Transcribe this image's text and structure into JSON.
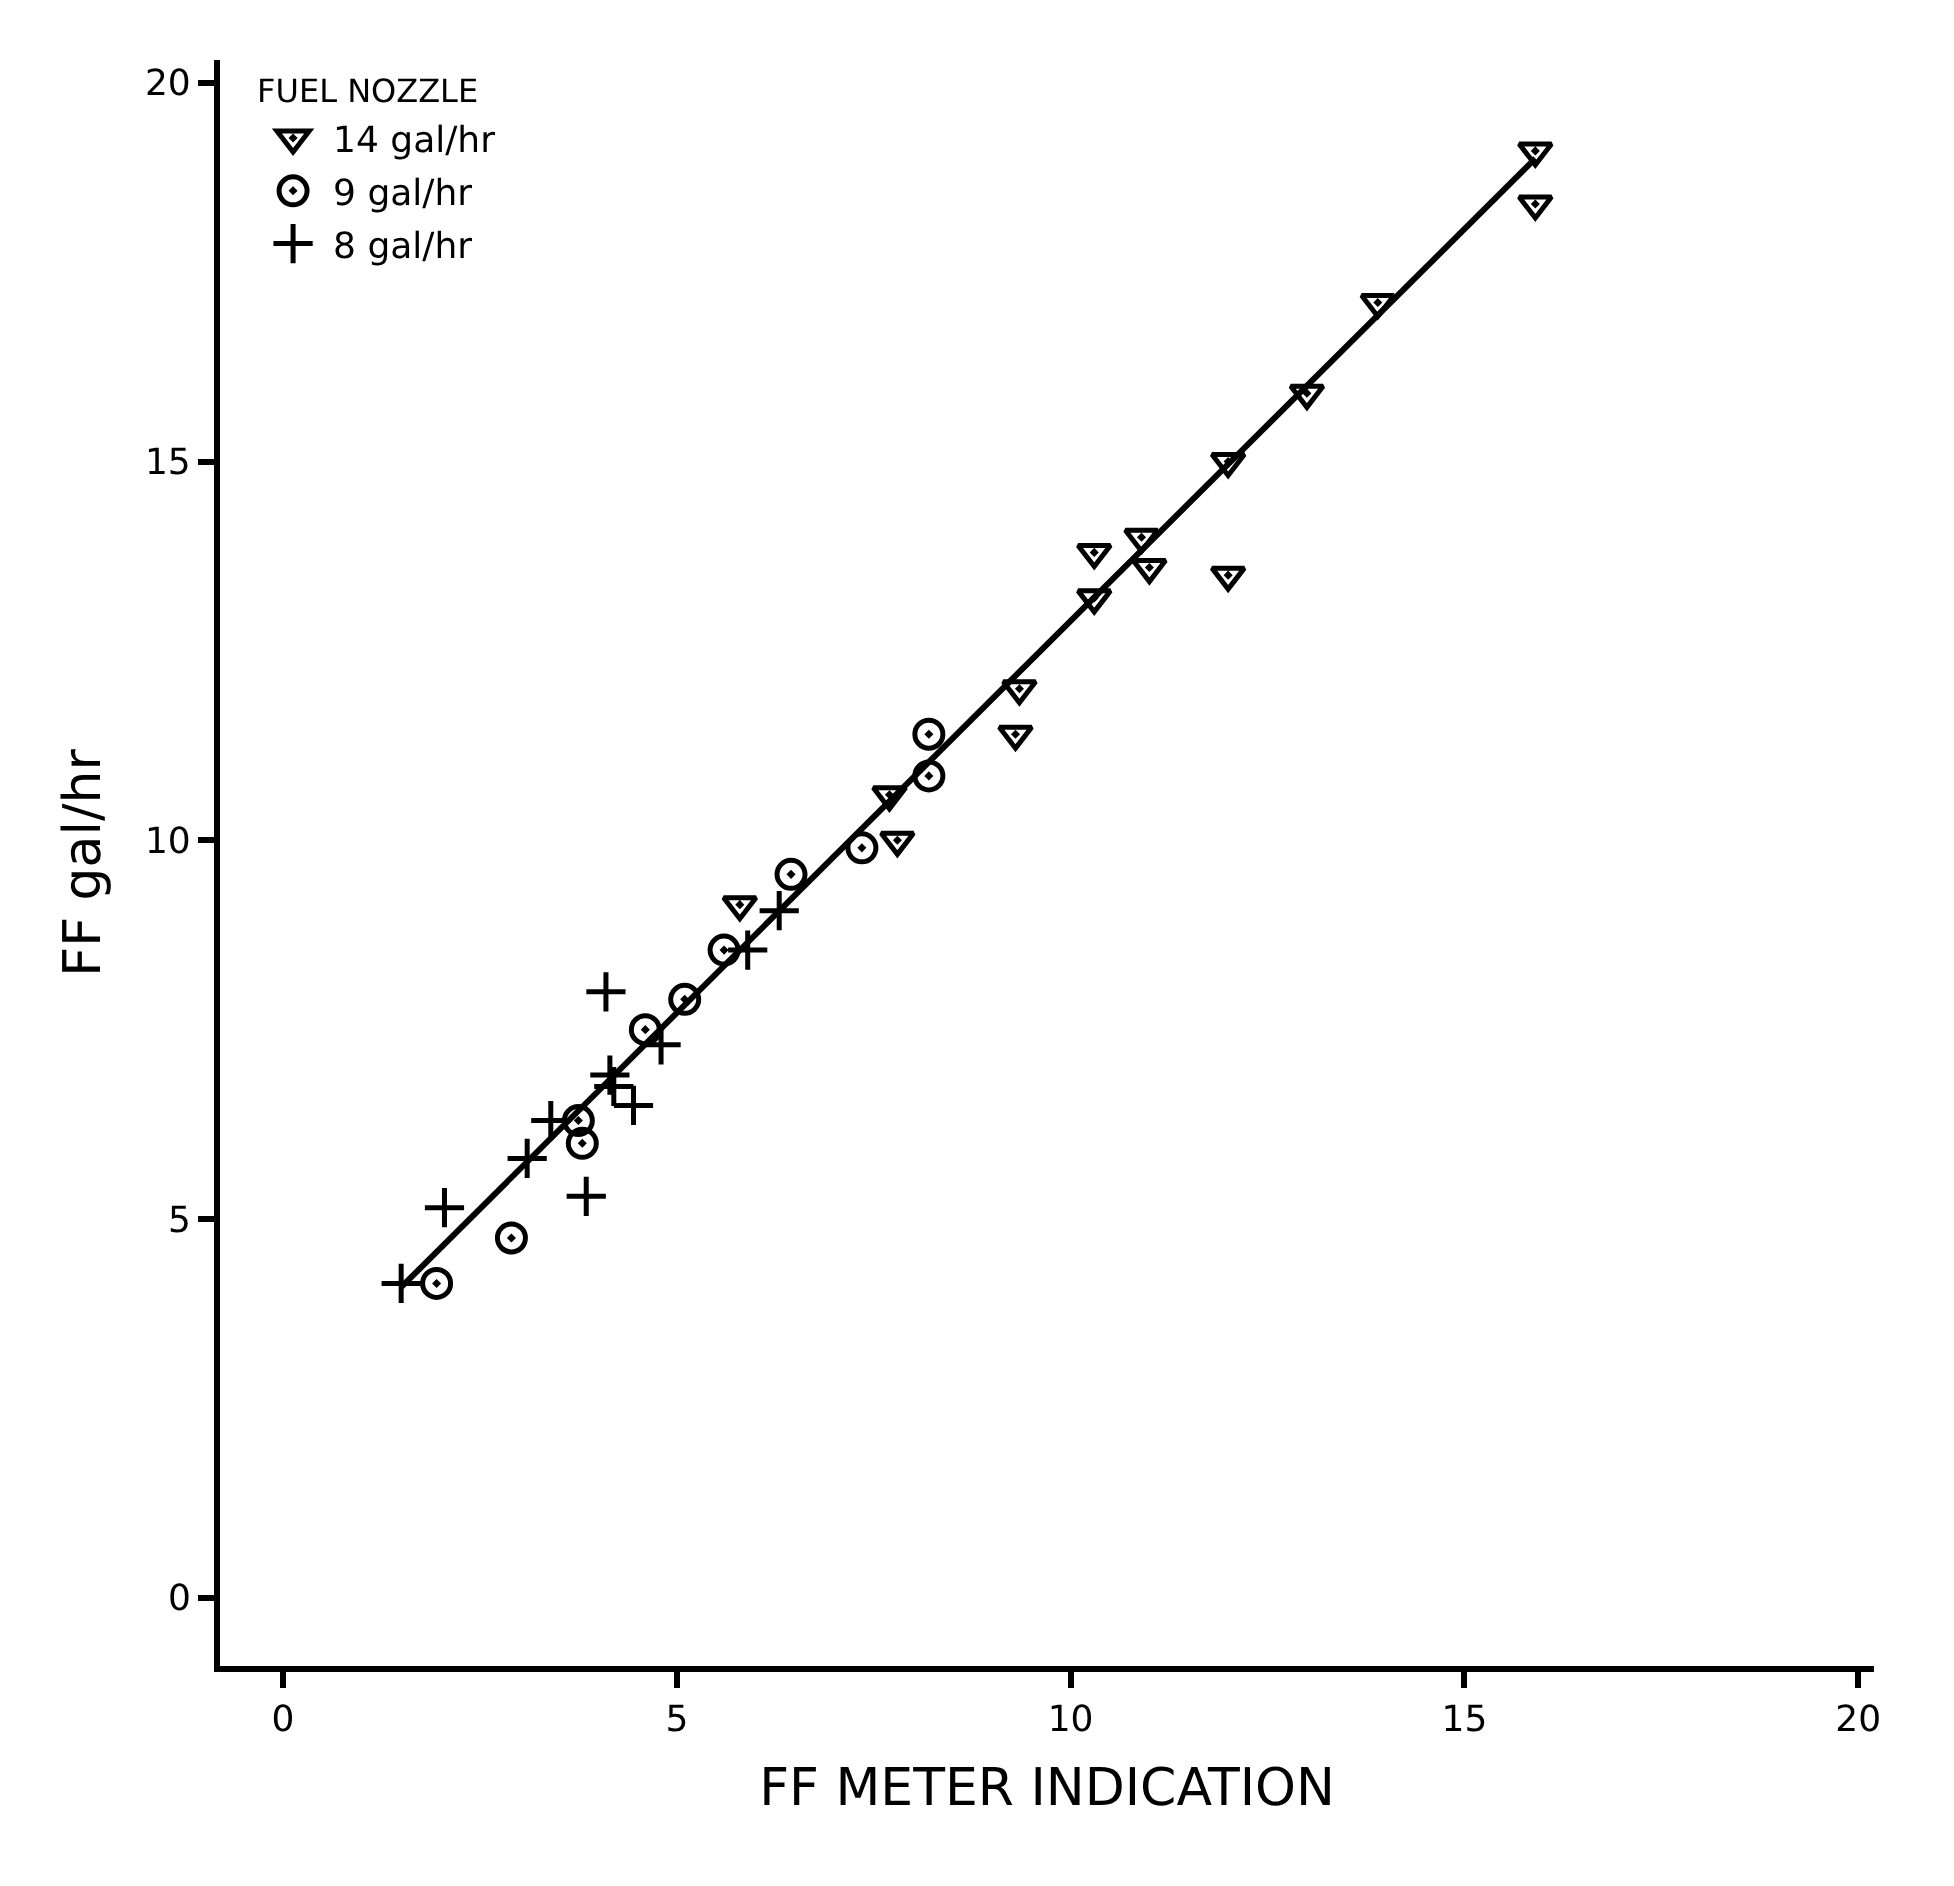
{
  "chart_data": {
    "type": "scatter",
    "xlabel": "FF METER INDICATION",
    "ylabel": "FF gal/hr",
    "legend_title": "FUEL NOZZLE",
    "legend": "top left",
    "xlim": [
      -0.8,
      20.2
    ],
    "ylim": [
      -0.9,
      20.3
    ],
    "xticks": [
      0,
      5,
      10,
      15,
      20
    ],
    "yticks": [
      0,
      5,
      10,
      15,
      20
    ],
    "series": [
      {
        "name": "14 gal/hr",
        "color": "#000000",
        "marker": "triangle",
        "x": [
          15.9,
          15.9,
          13.9,
          13.0,
          12.0,
          12.0,
          10.9,
          11.0,
          10.3,
          10.3,
          9.35,
          9.3,
          7.7,
          7.8,
          5.8
        ],
        "values": [
          19.1,
          18.4,
          17.1,
          15.9,
          15.0,
          13.5,
          14.0,
          13.6,
          13.8,
          13.2,
          12.0,
          11.4,
          10.6,
          10.0,
          9.15
        ]
      },
      {
        "name": "9 gal/hr",
        "color": "#000000",
        "marker": "circle",
        "x": [
          8.2,
          8.2,
          7.35,
          6.45,
          5.6,
          5.1,
          4.6,
          3.75,
          3.8,
          2.9,
          1.95
        ],
        "values": [
          11.4,
          10.85,
          9.9,
          9.55,
          8.55,
          7.9,
          7.5,
          6.3,
          6.0,
          4.75,
          4.15
        ]
      },
      {
        "name": "8 gal/hr",
        "color": "#000000",
        "marker": "cross",
        "x": [
          6.3,
          5.9,
          4.1,
          4.8,
          4.15,
          4.2,
          4.45,
          3.4,
          3.1,
          3.85,
          2.05,
          1.5
        ],
        "values": [
          9.07,
          8.55,
          8.0,
          7.3,
          6.9,
          6.75,
          6.5,
          6.3,
          5.8,
          5.3,
          5.15,
          4.15
        ]
      },
      {
        "type": "line",
        "color": "#000000",
        "line_style": "solid",
        "x": [
          1.5,
          15.9
        ],
        "values": [
          4.1,
          19.0
        ]
      }
    ]
  }
}
